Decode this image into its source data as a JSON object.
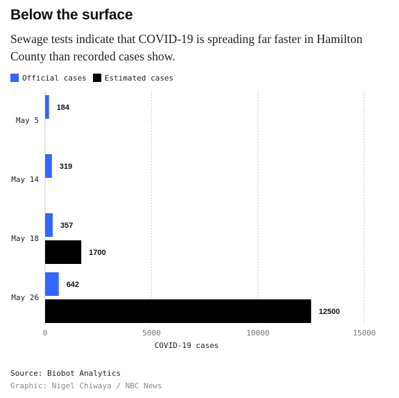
{
  "header": {
    "title": "Below the surface",
    "subtitle": "Sewage tests indicate that COVID-19 is spreading far faster in Hamilton County than recorded cases show."
  },
  "legend": [
    {
      "label": "Official cases",
      "color": "#3366ff"
    },
    {
      "label": "Estimated cases",
      "color": "#000000"
    }
  ],
  "chart_data": {
    "type": "bar",
    "orientation": "horizontal",
    "categories": [
      "May 5",
      "May 14",
      "May 18",
      "May 26"
    ],
    "series": [
      {
        "name": "Official cases",
        "color": "#3366ff",
        "values": [
          184,
          319,
          357,
          642
        ]
      },
      {
        "name": "Estimated cases",
        "color": "#000000",
        "values": [
          null,
          null,
          1700,
          12500
        ]
      }
    ],
    "xlabel": "COVID-19 cases",
    "xlim": [
      0,
      15000
    ],
    "xticks": [
      0,
      5000,
      10000,
      15000
    ],
    "grid": true
  },
  "footer": {
    "source": "Source: Biobot Analytics",
    "credit": "Graphic: Nigel Chiwaya / NBC News"
  }
}
